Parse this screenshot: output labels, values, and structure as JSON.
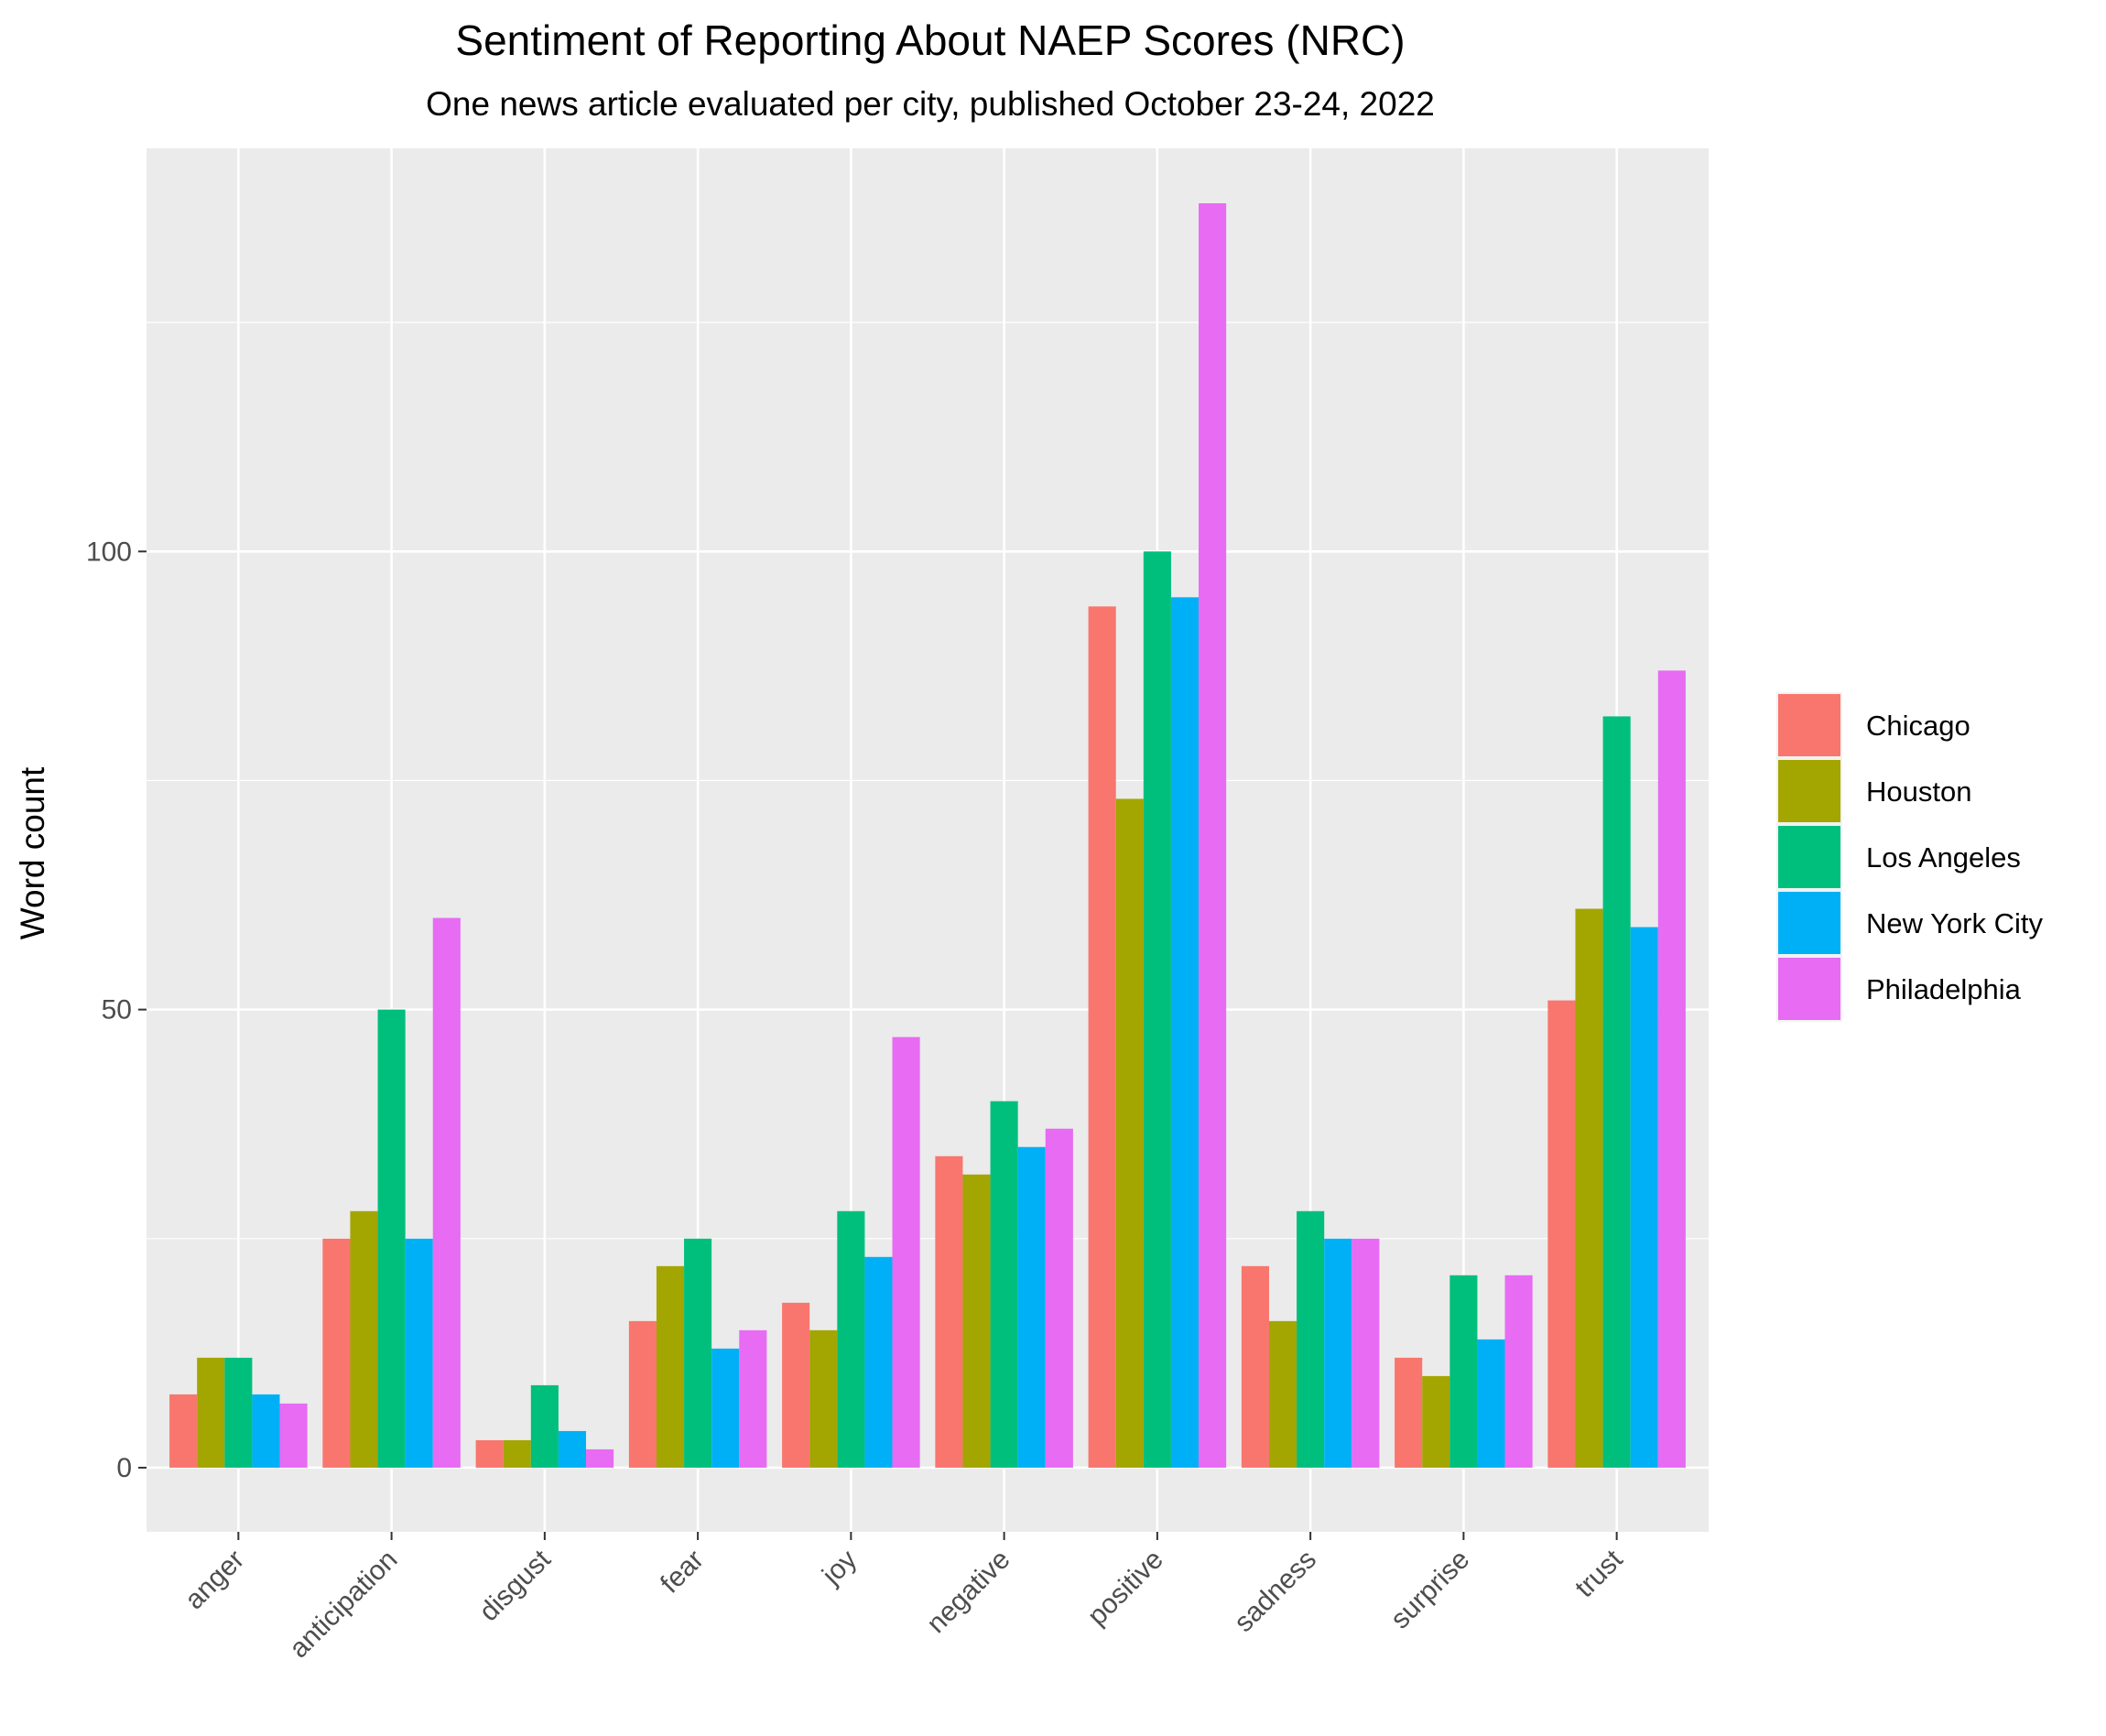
{
  "chart_data": {
    "type": "bar",
    "title": "Sentiment of Reporting About NAEP Scores (NRC)",
    "subtitle": "One news article evaluated per city, published October 23-24, 2022",
    "xlabel": "",
    "ylabel": "Word count",
    "ylim": [
      -7,
      144
    ],
    "yticks": [
      0,
      50,
      100
    ],
    "grid": true,
    "legend_position": "right",
    "categories": [
      "anger",
      "anticipation",
      "disgust",
      "fear",
      "joy",
      "negative",
      "positive",
      "sadness",
      "surprise",
      "trust"
    ],
    "series": [
      {
        "name": "Chicago",
        "color": "#F8766D",
        "values": [
          8,
          25,
          3,
          16,
          18,
          34,
          94,
          22,
          12,
          51
        ]
      },
      {
        "name": "Houston",
        "color": "#A3A500",
        "values": [
          12,
          28,
          3,
          22,
          15,
          32,
          73,
          16,
          10,
          61
        ]
      },
      {
        "name": "Los Angeles",
        "color": "#00BF7D",
        "values": [
          12,
          50,
          9,
          25,
          28,
          40,
          100,
          28,
          21,
          82
        ]
      },
      {
        "name": "New York City",
        "color": "#00B0F6",
        "values": [
          8,
          25,
          4,
          13,
          23,
          35,
          95,
          25,
          14,
          59
        ]
      },
      {
        "name": "Philadelphia",
        "color": "#E76BF3",
        "values": [
          7,
          60,
          2,
          15,
          47,
          37,
          138,
          25,
          21,
          87
        ]
      }
    ]
  }
}
